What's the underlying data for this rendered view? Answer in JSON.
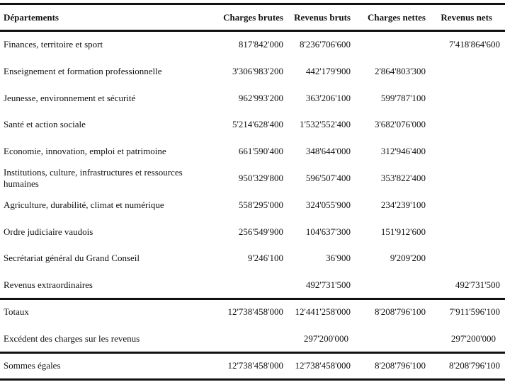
{
  "table": {
    "headers": [
      "Départements",
      "Charges brutes",
      "Revenus bruts",
      "Charges nettes",
      "Revenus nets"
    ],
    "rows": [
      [
        "Finances, territoire et sport",
        "817'842'000",
        "8'236'706'600",
        "",
        "7'418'864'600"
      ],
      [
        "Enseignement et formation professionnelle",
        "3'306'983'200",
        "442'179'900",
        "2'864'803'300",
        ""
      ],
      [
        "Jeunesse, environnement et sécurité",
        "962'993'200",
        "363'206'100",
        "599'787'100",
        ""
      ],
      [
        "Santé et action sociale",
        "5'214'628'400",
        "1'532'552'400",
        "3'682'076'000",
        ""
      ],
      [
        "Economie, innovation, emploi et patrimoine",
        "661'590'400",
        "348'644'000",
        "312'946'400",
        ""
      ],
      [
        "Institutions, culture, infrastructures et ressources humaines",
        "950'329'800",
        "596'507'400",
        "353'822'400",
        ""
      ],
      [
        "Agriculture, durabilité, climat et numérique",
        "558'295'000",
        "324'055'900",
        "234'239'100",
        ""
      ],
      [
        "Ordre judiciaire vaudois",
        "256'549'900",
        "104'637'300",
        "151'912'600",
        ""
      ],
      [
        "Secrétariat général du Grand Conseil",
        "9'246'100",
        "36'900",
        "9'209'200",
        ""
      ],
      [
        "Revenus extraordinaires",
        "",
        "492'731'500",
        "",
        "492'731'500"
      ]
    ],
    "totals": [
      "Totaux",
      "12'738'458'000",
      "12'441'258'000",
      "8'208'796'100",
      "7'911'596'100"
    ],
    "excess": [
      "Excédent des charges sur les revenus",
      "",
      "297'200'000",
      "",
      "297'200'000"
    ],
    "sums": [
      "Sommes égales",
      "12'738'458'000",
      "12'738'458'000",
      "8'208'796'100",
      "8'208'796'100"
    ]
  }
}
